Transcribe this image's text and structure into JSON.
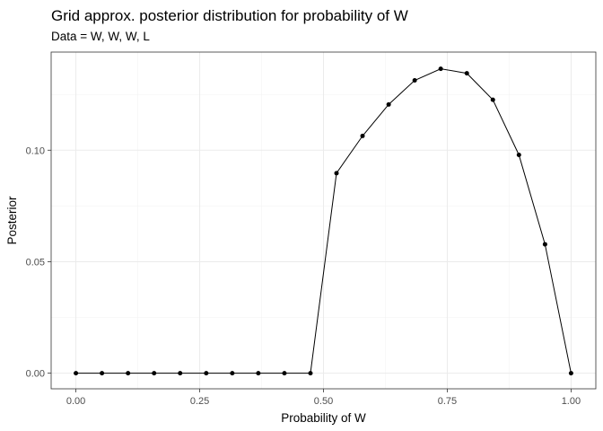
{
  "chart_data": {
    "type": "line",
    "title": "Grid approx. posterior distribution for probability of W",
    "subtitle": "Data = W, W, W, L",
    "xlabel": "Probability of W",
    "ylabel": "Posterior",
    "xlim": [
      -0.05,
      1.05
    ],
    "ylim": [
      -0.007,
      0.144
    ],
    "xticks": [
      0,
      0.25,
      0.5,
      0.75,
      1
    ],
    "xtick_labels": [
      "0.00",
      "0.25",
      "0.50",
      "0.75",
      "1.00"
    ],
    "yticks": [
      0,
      0.05,
      0.1
    ],
    "ytick_labels": [
      "0.00",
      "0.05",
      "0.10"
    ],
    "grid": true,
    "x": [
      0,
      0.0526,
      0.1053,
      0.1579,
      0.2105,
      0.2632,
      0.3158,
      0.3684,
      0.4211,
      0.4737,
      0.5263,
      0.5789,
      0.6316,
      0.6842,
      0.7368,
      0.7895,
      0.8421,
      0.8947,
      0.9474,
      1
    ],
    "values": [
      0,
      0,
      0,
      0,
      0,
      0,
      0,
      0,
      0,
      0,
      0.0897,
      0.1064,
      0.1205,
      0.1313,
      0.1365,
      0.1345,
      0.1226,
      0.0979,
      0.0578,
      0
    ],
    "colors": {
      "line": "#000000",
      "points": "#000000",
      "grid": "#ebebeb",
      "border": "#333333"
    }
  }
}
